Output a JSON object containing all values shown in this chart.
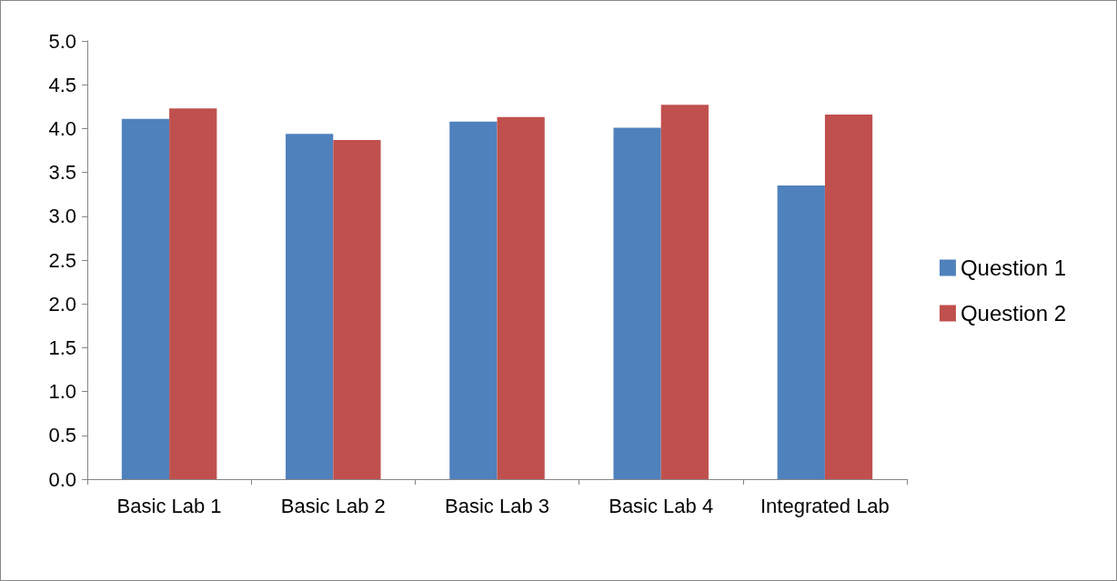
{
  "chart_data": {
    "type": "bar",
    "categories": [
      "Basic Lab 1",
      "Basic Lab 2",
      "Basic Lab 3",
      "Basic Lab 4",
      "Integrated Lab"
    ],
    "series": [
      {
        "name": "Question 1",
        "color": "#4f81bd",
        "values": [
          4.11,
          3.94,
          4.08,
          4.01,
          3.35
        ]
      },
      {
        "name": "Question 2",
        "color": "#c0504d",
        "values": [
          4.23,
          3.87,
          4.13,
          4.27,
          4.16
        ]
      }
    ],
    "ylim": [
      0,
      5
    ],
    "yticks": [
      {
        "value": 0,
        "label": "0.0"
      },
      {
        "value": 0.5,
        "label": "0.5"
      },
      {
        "value": 1,
        "label": "1.0"
      },
      {
        "value": 1.5,
        "label": "1.5"
      },
      {
        "value": 2,
        "label": "2.0"
      },
      {
        "value": 2.5,
        "label": "2.5"
      },
      {
        "value": 3,
        "label": "3.0"
      },
      {
        "value": 3.5,
        "label": "3.5"
      },
      {
        "value": 4,
        "label": "4.0"
      },
      {
        "value": 4.5,
        "label": "4.5"
      },
      {
        "value": 5,
        "label": "5.0"
      }
    ],
    "grid": false,
    "legend": "right"
  }
}
